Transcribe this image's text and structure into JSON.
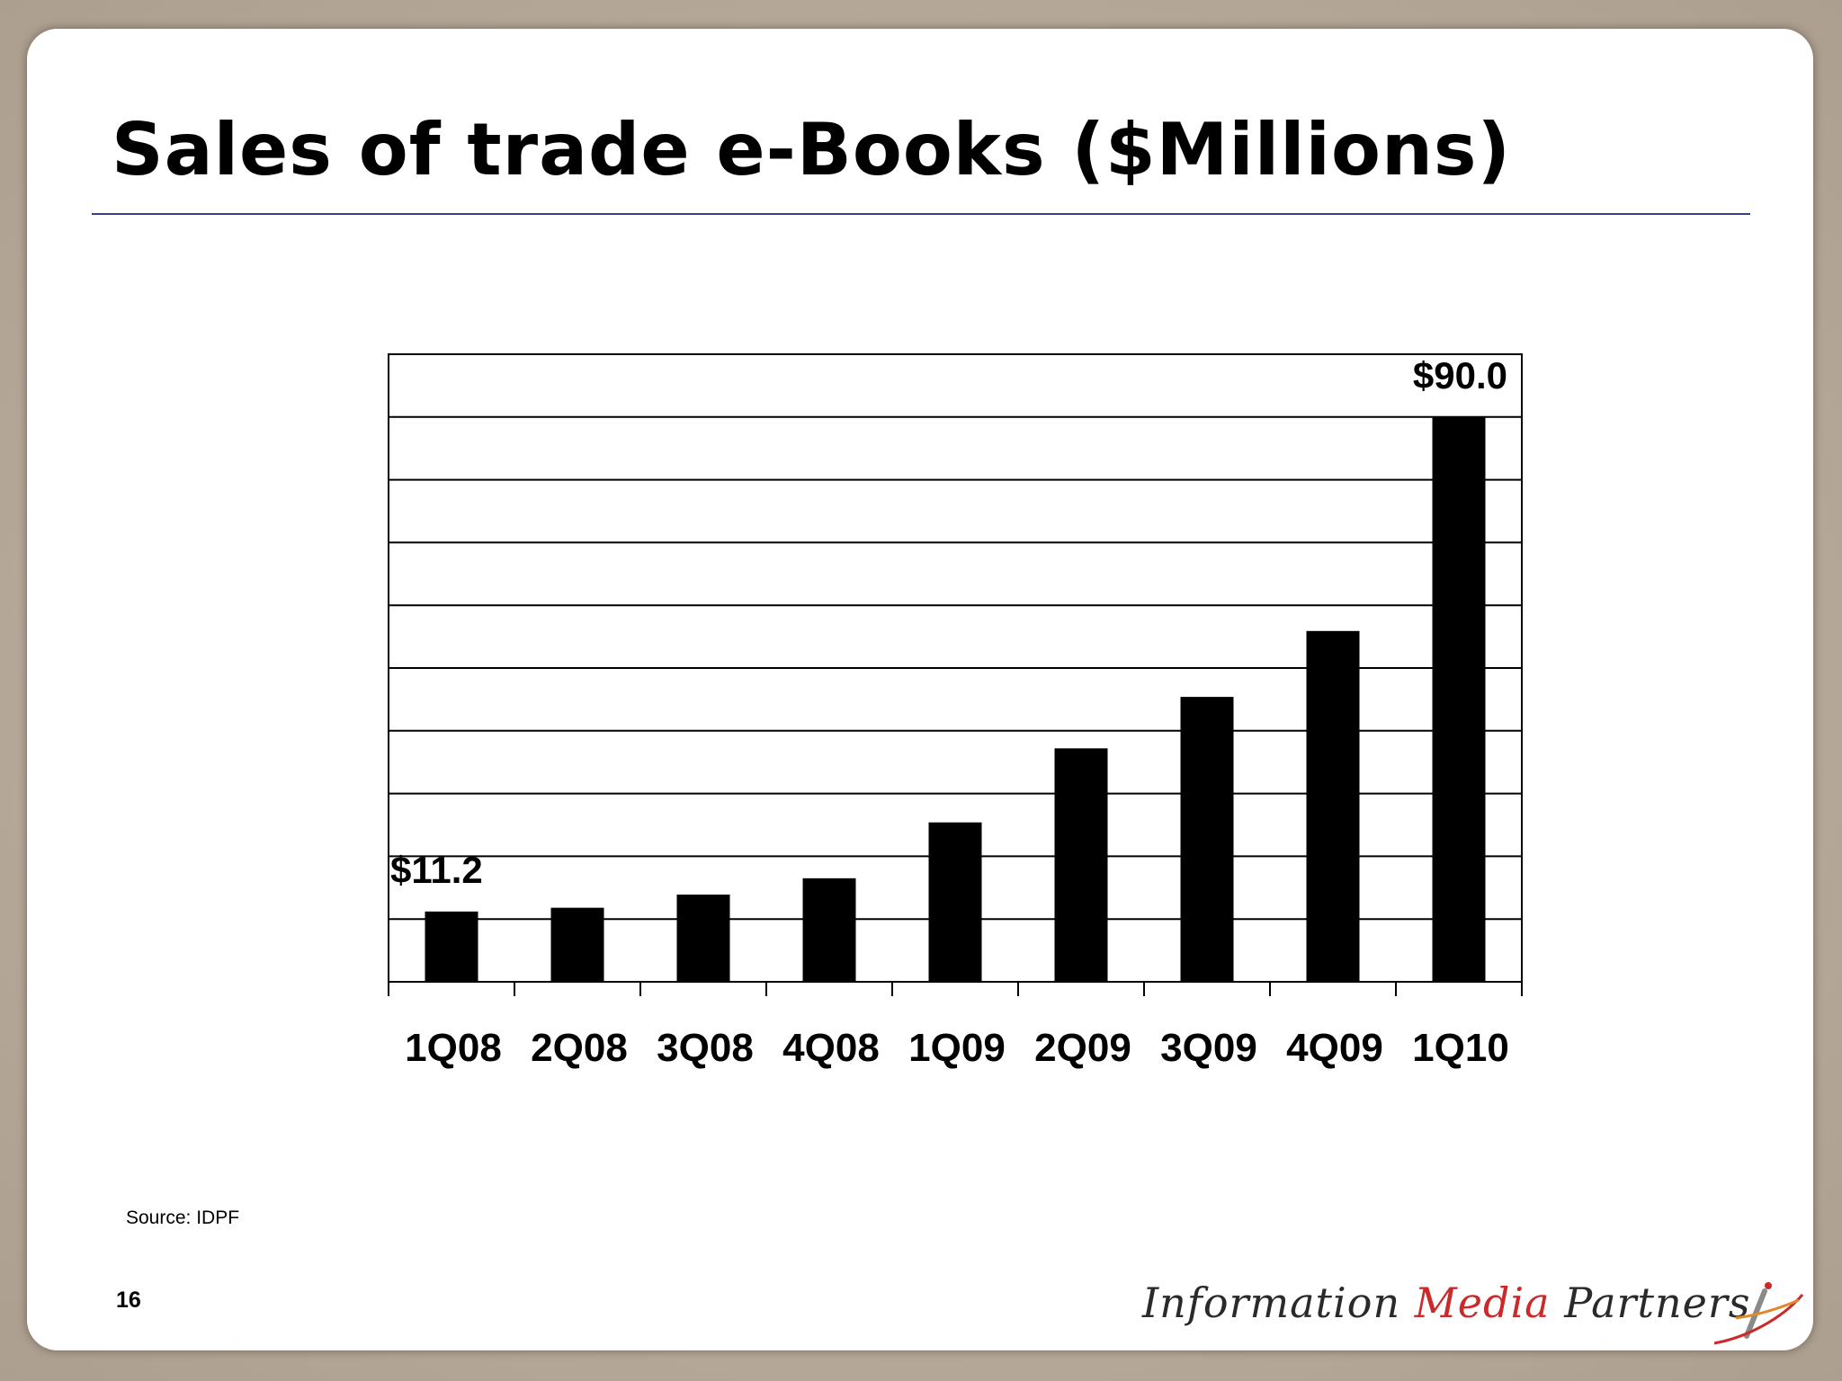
{
  "slide": {
    "title": "Sales of trade e-Books ($Millions)",
    "source": "Source: IDPF",
    "page_number": "16",
    "logo": {
      "word1": "Information",
      "word2": "Media",
      "word3": "Partners",
      "colors": {
        "text": "#2a2a2a",
        "accent": "#cc2a2a"
      }
    }
  },
  "chart_data": {
    "type": "bar",
    "title": "",
    "xlabel": "",
    "ylabel": "",
    "categories": [
      "1Q08",
      "2Q08",
      "3Q08",
      "4Q08",
      "1Q09",
      "2Q09",
      "3Q09",
      "4Q09",
      "1Q10"
    ],
    "values": [
      11.2,
      11.8,
      13.9,
      16.5,
      25.4,
      37.2,
      45.4,
      55.9,
      90.0
    ],
    "data_labels": [
      {
        "index": 0,
        "text": "$11.2"
      },
      {
        "index": 8,
        "text": "$90.0"
      }
    ],
    "ylim": [
      0,
      100
    ],
    "y_gridline_step": 10,
    "grid": true,
    "bar_color": "#000000",
    "legend": "none"
  }
}
